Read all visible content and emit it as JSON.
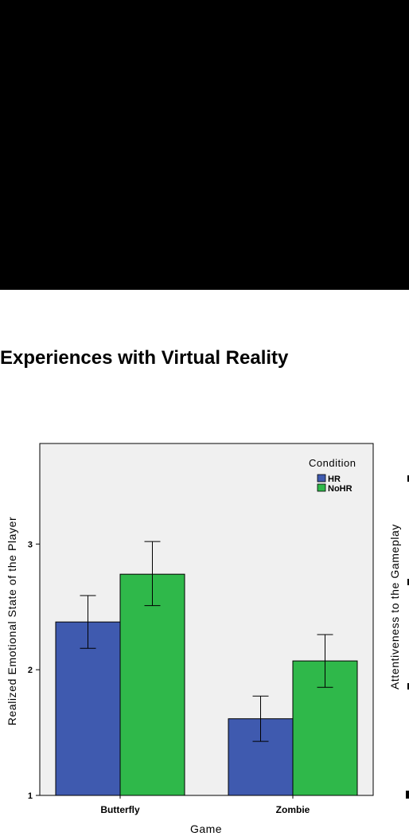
{
  "page": {
    "title": "Experiences with Virtual Reality"
  },
  "colors": {
    "hr": "#3f5aaf",
    "nohr": "#2fb84a",
    "plot_bg": "#f0f0f0",
    "band": "#000000"
  },
  "chart_data": [
    {
      "type": "bar",
      "title": "",
      "xlabel": "Game",
      "ylabel": "Realized Emotional State of the Player",
      "categories": [
        "Butterfly",
        "Zombie"
      ],
      "yticks": [
        "1",
        "2",
        "3"
      ],
      "ylim": [
        1,
        3.8
      ],
      "legend": {
        "title": "Condition",
        "placement": "top-right"
      },
      "series": [
        {
          "name": "HR",
          "values": [
            2.38,
            1.61
          ],
          "error_low": [
            2.17,
            1.43
          ],
          "error_high": [
            2.59,
            1.79
          ]
        },
        {
          "name": "NoHR",
          "values": [
            2.76,
            2.07
          ],
          "error_low": [
            2.51,
            1.86
          ],
          "error_high": [
            3.02,
            2.28
          ]
        }
      ]
    },
    {
      "type": "bar",
      "partial": true,
      "ylabel": "Attentiveness to the Gameplay"
    }
  ]
}
